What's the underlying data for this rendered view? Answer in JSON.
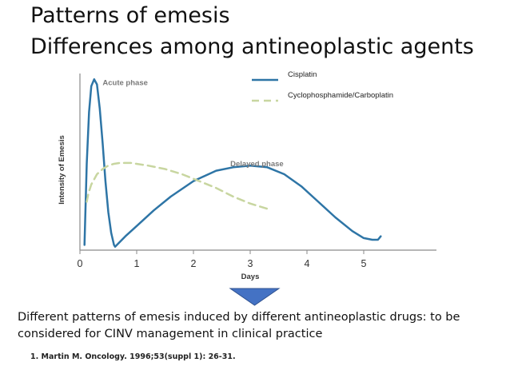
{
  "slide": {
    "title_line1": "Patterns of emesis",
    "title_line2": "Differences among antineoplastic agents",
    "caption": "Different patterns of emesis induced by different antineoplastic drugs: to be considered for CINV management in clinical practice",
    "reference": "1. Martin M. Oncology. 1996;53(suppl 1): 26-31.",
    "arrow_icon": "down-arrow-icon",
    "arrow_color": "#4472C4"
  },
  "chart_data": {
    "type": "line",
    "xlabel": "Days",
    "ylabel": "Intensity of Emesis",
    "xlim": [
      0,
      5.9
    ],
    "ylim": [
      0,
      1
    ],
    "xticks": [
      "0",
      "1",
      "2",
      "3",
      "4",
      "5"
    ],
    "grid": false,
    "legend_position": "top-right",
    "annotations": [
      {
        "text": "Acute phase",
        "x": 0.4,
        "y": 0.97
      },
      {
        "text": "Delayed phase",
        "x": 2.65,
        "y": 0.5
      }
    ],
    "series": [
      {
        "name": "Cisplatin",
        "style": "solid",
        "color": "#2E75A6",
        "x": [
          0.08,
          0.12,
          0.16,
          0.2,
          0.25,
          0.3,
          0.35,
          0.4,
          0.45,
          0.5,
          0.55,
          0.6,
          0.62,
          0.8,
          1.0,
          1.3,
          1.6,
          2.0,
          2.4,
          2.7,
          3.0,
          3.3,
          3.6,
          3.9,
          4.2,
          4.5,
          4.8,
          5.0,
          5.15,
          5.25,
          5.3
        ],
        "y": [
          0.03,
          0.5,
          0.8,
          0.95,
          0.99,
          0.96,
          0.82,
          0.62,
          0.4,
          0.22,
          0.1,
          0.03,
          0.02,
          0.08,
          0.14,
          0.23,
          0.31,
          0.4,
          0.46,
          0.48,
          0.49,
          0.48,
          0.44,
          0.37,
          0.28,
          0.19,
          0.11,
          0.07,
          0.06,
          0.06,
          0.08
        ]
      },
      {
        "name": "Cyclophosphamide/Carboplatin",
        "style": "dashed",
        "color": "#C8D6A0",
        "x": [
          0.12,
          0.15,
          0.2,
          0.3,
          0.4,
          0.5,
          0.6,
          0.7,
          0.9,
          1.2,
          1.5,
          1.8,
          2.1,
          2.4,
          2.7,
          3.0,
          3.3
        ],
        "y": [
          0.28,
          0.33,
          0.38,
          0.44,
          0.47,
          0.49,
          0.5,
          0.505,
          0.505,
          0.49,
          0.47,
          0.44,
          0.4,
          0.36,
          0.31,
          0.27,
          0.24
        ]
      }
    ]
  }
}
